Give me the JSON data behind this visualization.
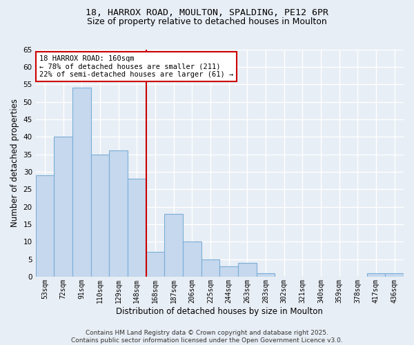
{
  "title_line1": "18, HARROX ROAD, MOULTON, SPALDING, PE12 6PR",
  "title_line2": "Size of property relative to detached houses in Moulton",
  "xlabel": "Distribution of detached houses by size in Moulton",
  "ylabel": "Number of detached properties",
  "categories": [
    "53sqm",
    "72sqm",
    "91sqm",
    "110sqm",
    "129sqm",
    "148sqm",
    "168sqm",
    "187sqm",
    "206sqm",
    "225sqm",
    "244sqm",
    "263sqm",
    "283sqm",
    "302sqm",
    "321sqm",
    "340sqm",
    "359sqm",
    "378sqm",
    "417sqm",
    "436sqm"
  ],
  "values": [
    29,
    40,
    54,
    35,
    36,
    28,
    7,
    18,
    10,
    5,
    3,
    4,
    1,
    0,
    0,
    0,
    0,
    0,
    1,
    1
  ],
  "bar_color": "#c5d8ee",
  "bar_edge_color": "#7aaed6",
  "vline_x": 6.0,
  "vline_color": "#cc0000",
  "annotation_line1": "18 HARROX ROAD: 160sqm",
  "annotation_line2": "← 78% of detached houses are smaller (211)",
  "annotation_line3": "22% of semi-detached houses are larger (61) →",
  "annotation_box_color": "#ffffff",
  "annotation_box_edge": "#cc0000",
  "annotation_fontsize": 7.5,
  "ylim": [
    0,
    65
  ],
  "yticks": [
    0,
    5,
    10,
    15,
    20,
    25,
    30,
    35,
    40,
    45,
    50,
    55,
    60,
    65
  ],
  "bg_color": "#e8eef5",
  "grid_color": "#ffffff",
  "title_fontsize": 9.5,
  "subtitle_fontsize": 9,
  "footer_text": "Contains HM Land Registry data © Crown copyright and database right 2025.\nContains public sector information licensed under the Open Government Licence v3.0.",
  "footer_fontsize": 6.5
}
